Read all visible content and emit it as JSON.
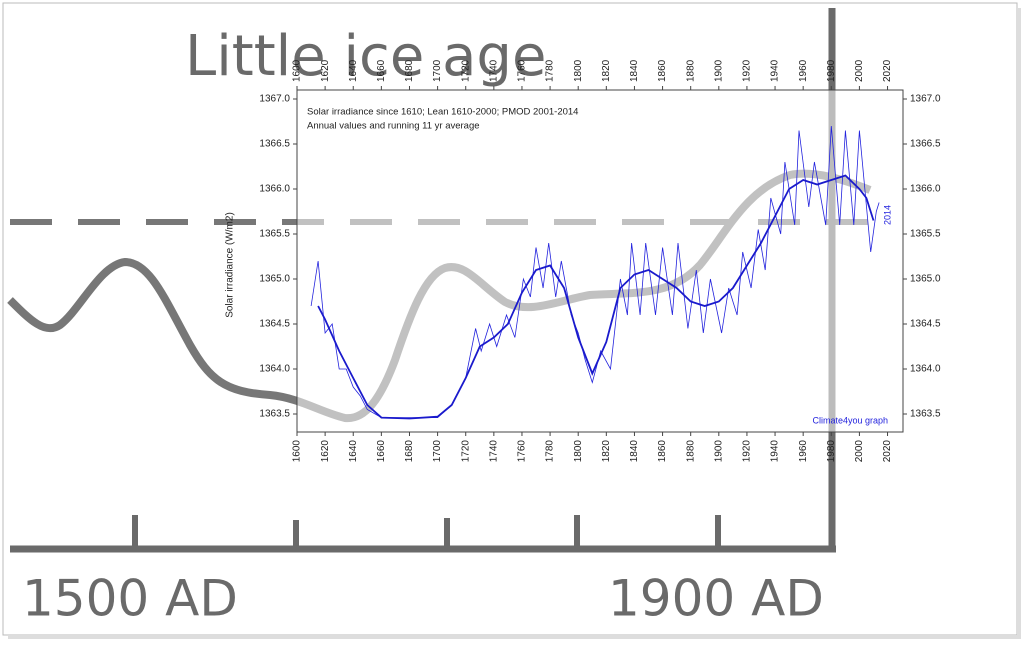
{
  "background_figure": {
    "title": "Little ice age",
    "x_labels": [
      "1500 AD",
      "1900 AD"
    ]
  },
  "chart_data": {
    "type": "line",
    "title": "Solar irradiance since 1610; Lean 1610-2000; PMOD 2001-2014",
    "subtitle": "Annual values and running 11 yr average",
    "ylabel": "Solar irradiance (W/m2)",
    "annotations": [
      "2014",
      "Climate4you graph"
    ],
    "xlim": [
      1600,
      2031
    ],
    "ylim": [
      1363.3,
      1367.1
    ],
    "xticks": [
      1600,
      1620,
      1640,
      1660,
      1680,
      1700,
      1720,
      1740,
      1760,
      1780,
      1800,
      1820,
      1840,
      1860,
      1880,
      1900,
      1920,
      1940,
      1960,
      1980,
      2000,
      2020
    ],
    "yticks": [
      1363.5,
      {
        "value": 1364,
        "label": "1364.0"
      },
      1364.5,
      {
        "value": 1365,
        "label": "1365.0"
      },
      1365.5,
      {
        "value": 1366,
        "label": "1366.0"
      },
      1366.5,
      {
        "value": 1367,
        "label": "1367.0"
      }
    ],
    "series": [
      {
        "name": "Annual values",
        "color": "#2222dd",
        "width": 0.8,
        "x": [
          1610,
          1615,
          1620,
          1625,
          1630,
          1635,
          1640,
          1645,
          1650,
          1660,
          1700,
          1710,
          1720,
          1727,
          1731,
          1737,
          1742,
          1749,
          1755,
          1761,
          1766,
          1770,
          1775,
          1779,
          1784,
          1788,
          1795,
          1800,
          1805,
          1810,
          1816,
          1823,
          1830,
          1835,
          1838,
          1844,
          1848,
          1855,
          1860,
          1867,
          1871,
          1878,
          1884,
          1889,
          1894,
          1902,
          1907,
          1913,
          1917,
          1923,
          1928,
          1933,
          1937,
          1944,
          1947,
          1954,
          1957,
          1964,
          1968,
          1976,
          1980,
          1986,
          1990,
          1996,
          2000,
          2008,
          2012,
          2014
        ],
        "values": [
          1364.7,
          1365.2,
          1364.4,
          1364.5,
          1364.0,
          1364.0,
          1363.8,
          1363.7,
          1363.55,
          1363.46,
          1363.46,
          1363.6,
          1363.9,
          1364.45,
          1364.2,
          1364.5,
          1364.25,
          1364.6,
          1364.35,
          1365.0,
          1364.8,
          1365.35,
          1364.9,
          1365.4,
          1364.8,
          1365.2,
          1364.6,
          1364.4,
          1364.1,
          1363.85,
          1364.2,
          1364.0,
          1365.0,
          1364.6,
          1365.4,
          1364.6,
          1365.4,
          1364.6,
          1365.35,
          1364.6,
          1365.4,
          1364.45,
          1365.1,
          1364.4,
          1365.0,
          1364.4,
          1364.9,
          1364.6,
          1365.3,
          1364.9,
          1365.55,
          1365.1,
          1365.9,
          1365.5,
          1366.3,
          1365.6,
          1366.65,
          1365.8,
          1366.3,
          1365.6,
          1366.7,
          1365.6,
          1366.65,
          1365.6,
          1366.65,
          1365.3,
          1365.75,
          1365.85
        ]
      },
      {
        "name": "Running 11 yr average",
        "color": "#1a1acc",
        "width": 1.8,
        "x": [
          1615,
          1620,
          1630,
          1640,
          1650,
          1660,
          1680,
          1700,
          1710,
          1720,
          1730,
          1740,
          1750,
          1760,
          1770,
          1780,
          1790,
          1800,
          1810,
          1820,
          1830,
          1840,
          1850,
          1860,
          1870,
          1880,
          1890,
          1900,
          1910,
          1920,
          1930,
          1940,
          1950,
          1960,
          1970,
          1980,
          1990,
          2000,
          2005,
          2010
        ],
        "values": [
          1364.7,
          1364.55,
          1364.2,
          1363.9,
          1363.6,
          1363.46,
          1363.45,
          1363.47,
          1363.6,
          1363.9,
          1364.25,
          1364.35,
          1364.5,
          1364.85,
          1365.1,
          1365.15,
          1364.9,
          1364.35,
          1363.95,
          1364.3,
          1364.9,
          1365.05,
          1365.1,
          1365.0,
          1364.9,
          1364.75,
          1364.7,
          1364.75,
          1364.9,
          1365.15,
          1365.4,
          1365.7,
          1366.0,
          1366.1,
          1366.05,
          1366.1,
          1366.15,
          1366.0,
          1365.9,
          1365.65
        ]
      }
    ]
  }
}
